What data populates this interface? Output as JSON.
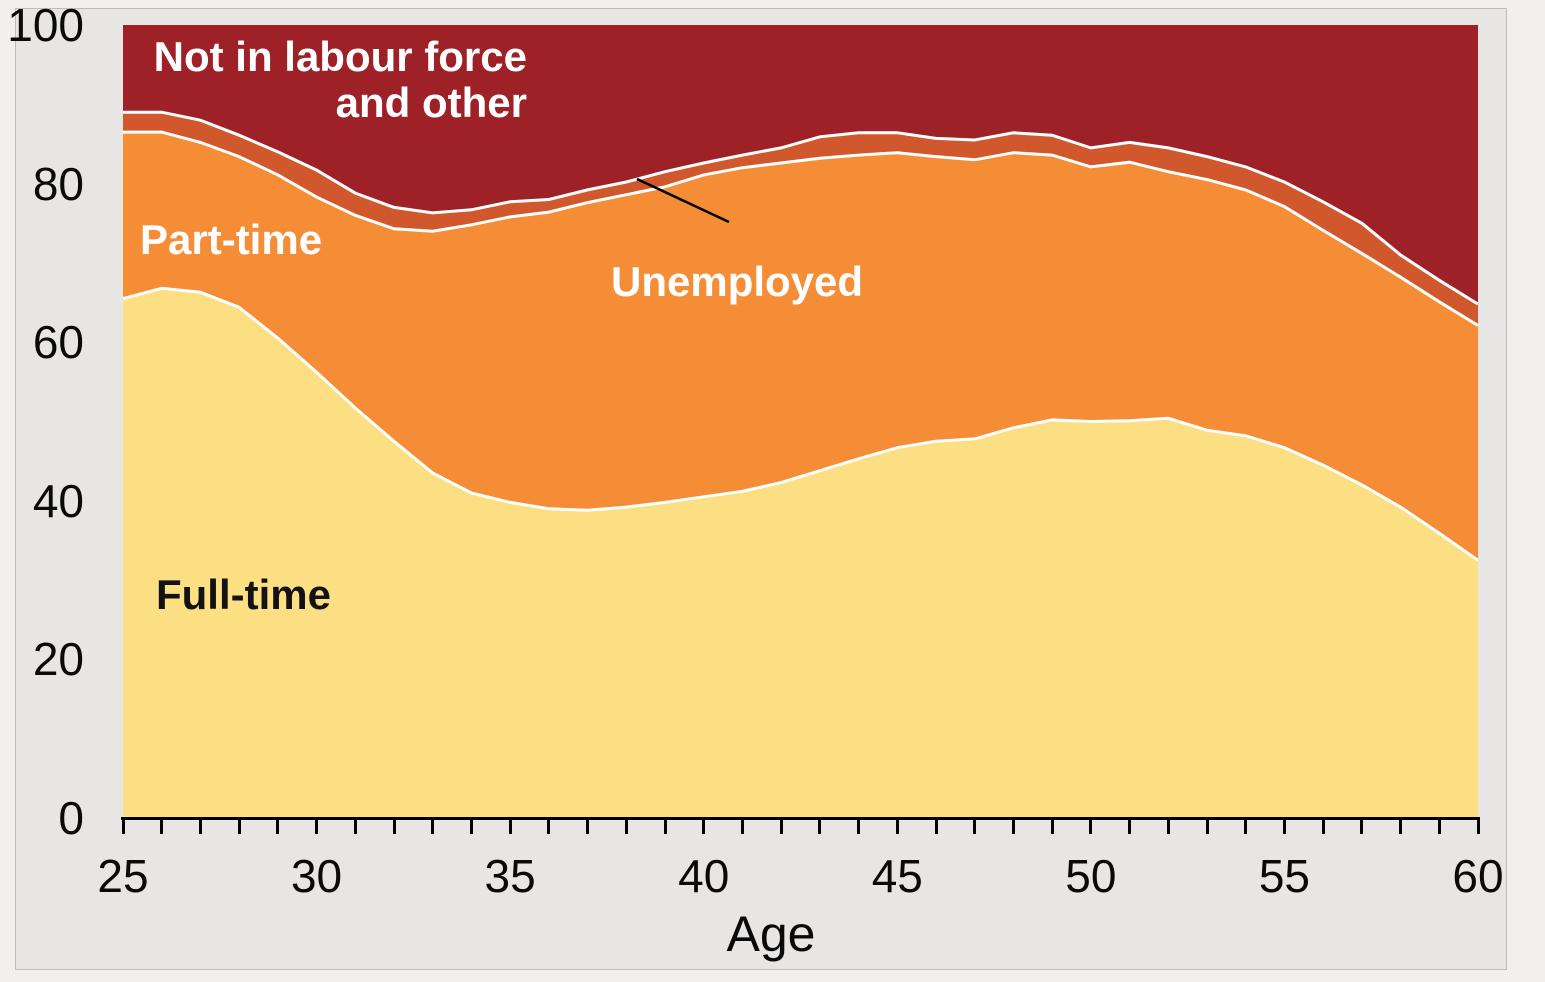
{
  "figure": {
    "background_color": "#e7e6e4",
    "frame_color": "#bebdbb"
  },
  "labels": {
    "nilf_line1": "Not in labour force",
    "nilf_line2": "and other",
    "part_time": "Part-time",
    "unemployed": "Unemployed",
    "full_time": "Full-time"
  },
  "chart_data": {
    "type": "area",
    "stacked": true,
    "title": "",
    "xlabel": "Age",
    "ylabel": "",
    "xlim": [
      25,
      60
    ],
    "ylim": [
      0,
      100
    ],
    "grid": false,
    "legend": "labels drawn inside areas",
    "separator_color": "#ffffff",
    "x": [
      25,
      26,
      27,
      28,
      29,
      30,
      31,
      32,
      33,
      34,
      35,
      36,
      37,
      38,
      39,
      40,
      41,
      42,
      43,
      44,
      45,
      46,
      47,
      48,
      49,
      50,
      51,
      52,
      53,
      54,
      55,
      56,
      57,
      58,
      59,
      60
    ],
    "x_major_ticks": [
      25,
      30,
      35,
      40,
      45,
      50,
      55,
      60
    ],
    "y_ticks": [
      0,
      20,
      40,
      60,
      80,
      100
    ],
    "series": [
      {
        "name": "Full-time",
        "color": "#fcde83",
        "values": [
          65.5,
          66.8,
          66.3,
          64.4,
          60.5,
          56.2,
          51.7,
          47.5,
          43.5,
          41.0,
          39.8,
          39.0,
          38.8,
          39.2,
          39.8,
          40.5,
          41.2,
          42.3,
          43.8,
          45.3,
          46.7,
          47.5,
          47.8,
          49.2,
          50.2,
          50.0,
          50.1,
          50.4,
          48.9,
          48.2,
          46.7,
          44.5,
          42.0,
          39.2,
          35.9,
          32.5
        ]
      },
      {
        "name": "Part-time",
        "color": "#f58c36",
        "values": [
          21.0,
          19.7,
          18.9,
          19.0,
          20.6,
          22.1,
          24.3,
          26.8,
          30.5,
          33.8,
          36.0,
          37.4,
          38.8,
          39.4,
          39.8,
          40.6,
          40.8,
          40.3,
          39.4,
          38.3,
          37.2,
          35.9,
          35.2,
          34.7,
          33.4,
          32.1,
          32.6,
          31.1,
          31.6,
          31.0,
          30.4,
          29.6,
          29.2,
          29.0,
          29.2,
          29.6
        ]
      },
      {
        "name": "Unemployed",
        "color": "#d1582c",
        "values": [
          2.5,
          2.5,
          2.8,
          2.7,
          2.9,
          3.4,
          2.8,
          2.7,
          2.3,
          1.9,
          1.9,
          1.6,
          1.6,
          1.6,
          1.9,
          1.5,
          1.6,
          1.9,
          2.7,
          2.8,
          2.5,
          2.3,
          2.5,
          2.5,
          2.5,
          2.4,
          2.5,
          3.0,
          2.9,
          2.9,
          3.1,
          3.6,
          3.8,
          2.8,
          2.7,
          2.7
        ]
      },
      {
        "name": "Not in labour force and other",
        "color": "#9e2128",
        "values": [
          11.0,
          11.0,
          12.0,
          13.9,
          16.0,
          18.3,
          21.2,
          23.0,
          23.7,
          23.3,
          22.3,
          22.0,
          20.8,
          19.8,
          18.5,
          17.4,
          16.4,
          15.5,
          14.1,
          13.6,
          13.6,
          14.3,
          14.5,
          13.6,
          13.9,
          15.5,
          14.8,
          15.5,
          16.6,
          17.9,
          19.8,
          22.3,
          25.0,
          29.0,
          32.2,
          35.2
        ]
      }
    ]
  }
}
